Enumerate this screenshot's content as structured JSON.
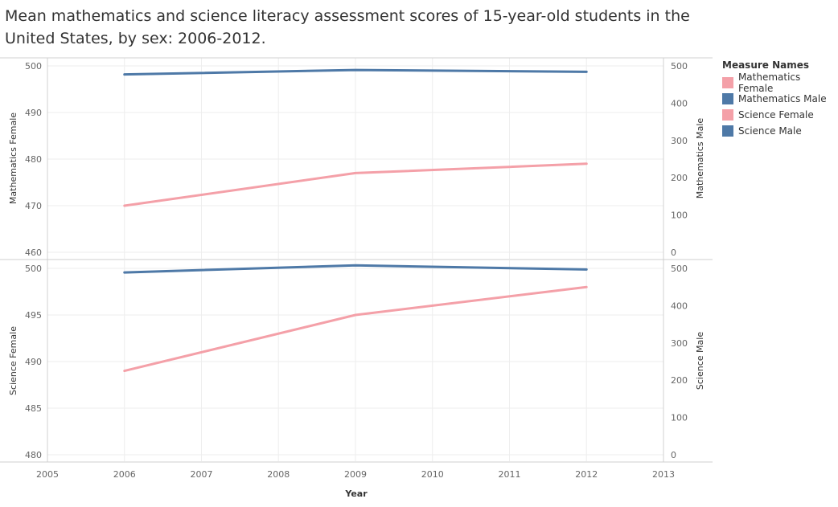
{
  "title": "Mean mathematics and science literacy assessment scores of 15-year-old students in the United States, by sex: 2006-2012.",
  "legend": {
    "title": "Measure Names",
    "items": [
      {
        "label": "Mathematics Female",
        "color": "#f4a0a8"
      },
      {
        "label": "Mathematics Male",
        "color": "#4e79a7"
      },
      {
        "label": "Science Female",
        "color": "#f4a0a8"
      },
      {
        "label": "Science Male",
        "color": "#4e79a7"
      }
    ]
  },
  "chart_data": {
    "type": "line",
    "xlabel": "Year",
    "x_ticks": [
      "2005",
      "2006",
      "2007",
      "2008",
      "2009",
      "2010",
      "2011",
      "2012",
      "2013"
    ],
    "xlim": [
      2005,
      2013
    ],
    "grid": true,
    "legend_position": "right",
    "panels": [
      {
        "left_label": "Mathematics Female",
        "right_label": "Mathematics Male",
        "left_ylim": [
          460,
          500
        ],
        "left_ticks": [
          "460",
          "470",
          "480",
          "490",
          "500"
        ],
        "right_ylim": [
          0,
          500
        ],
        "right_ticks": [
          "0",
          "100",
          "200",
          "300",
          "400",
          "500"
        ],
        "series": [
          {
            "name": "Mathematics Male",
            "axis": "right",
            "color": "#4e79a7",
            "x": [
              2006,
              2009,
              2012
            ],
            "values": [
              477,
              489,
              484
            ]
          },
          {
            "name": "Mathematics Female",
            "axis": "left",
            "color": "#f4a0a8",
            "x": [
              2006,
              2009,
              2012
            ],
            "values": [
              470,
              477,
              479
            ]
          }
        ]
      },
      {
        "left_label": "Science Female",
        "right_label": "Science Male",
        "left_ylim": [
          480,
          500
        ],
        "left_ticks": [
          "480",
          "485",
          "490",
          "495",
          "500"
        ],
        "right_ylim": [
          0,
          500
        ],
        "right_ticks": [
          "0",
          "100",
          "200",
          "300",
          "400",
          "500"
        ],
        "series": [
          {
            "name": "Science Male",
            "axis": "right",
            "color": "#4e79a7",
            "x": [
              2006,
              2009,
              2012
            ],
            "values": [
              489,
              508,
              497
            ]
          },
          {
            "name": "Science Female",
            "axis": "left",
            "color": "#f4a0a8",
            "x": [
              2006,
              2009,
              2012
            ],
            "values": [
              489,
              495,
              498
            ]
          }
        ]
      }
    ]
  }
}
